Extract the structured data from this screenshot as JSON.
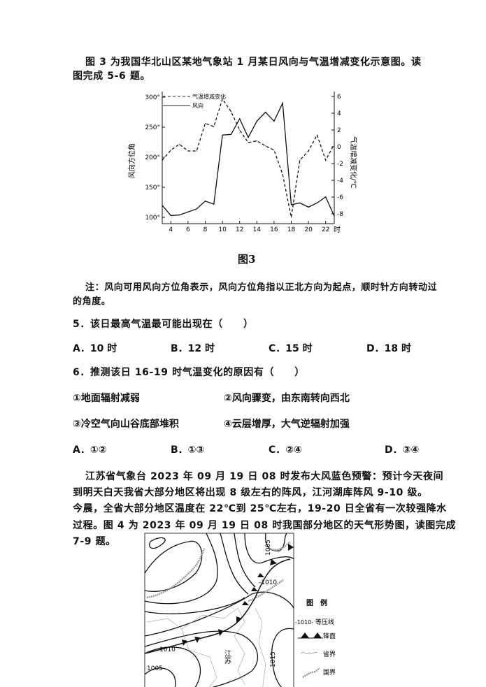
{
  "intro1": {
    "lines": [
      "图 3 为我国华北山区某地气象站 1 月某日风向与气温增减变化示意图。读",
      "图完成 5-6 题。"
    ]
  },
  "chart_data": {
    "type": "line",
    "x": [
      3,
      4,
      5,
      6,
      7,
      8,
      9,
      10,
      11,
      12,
      13,
      14,
      15,
      16,
      17,
      18,
      19,
      20,
      21,
      22,
      23
    ],
    "xticks": [
      "4",
      "6",
      "8",
      "10",
      "12",
      "14",
      "16",
      "18",
      "20",
      "22"
    ],
    "xunit": "时",
    "ylabel_left": "风向方位角",
    "ylabel_right": "气温增减变化/℃",
    "yticks_left": [
      "100°",
      "150°",
      "200°",
      "250°",
      "300°"
    ],
    "yticks_right": [
      "-8",
      "-6",
      "-4",
      "-2",
      "0",
      "2",
      "4",
      "6"
    ],
    "ylim_left": [
      100,
      300
    ],
    "ylim_right": [
      -8,
      6
    ],
    "legend_placement": "top-left",
    "series": [
      {
        "name": "气温增减变化",
        "axis": "right",
        "style": "dashed",
        "values": [
          -1.6,
          -0.4,
          0.3,
          -0.5,
          -0.5,
          2.8,
          2.4,
          5.7,
          4.2,
          2.0,
          0.5,
          0.7,
          0.1,
          -0.4,
          -3.3,
          -8.4,
          -1.6,
          -0.5,
          1.4,
          -1.6,
          0.3
        ]
      },
      {
        "name": "风向",
        "axis": "left",
        "style": "solid",
        "values": [
          120,
          103,
          104,
          109,
          114,
          127,
          122,
          237,
          238,
          264,
          233,
          260,
          275,
          260,
          290,
          121,
          124,
          117,
          124,
          134,
          102
        ]
      }
    ],
    "title": "图3"
  },
  "note": {
    "lines": [
      "注：风向可用风向方位角表示，风向方位角指以正北方向为起点，顺时针方向转动过",
      "的角度。"
    ]
  },
  "q5": {
    "stem": "5．该日最高气温最可能出现在（　　）",
    "options": [
      "A．10 时",
      "B．12 时",
      "C．15 时",
      "D．18 时"
    ]
  },
  "q6": {
    "stem": "6．推测该日 16-19 时气温变化的原因有（　　）",
    "items": [
      "①地面辐射减弱",
      "②风向骤变，由东南转向西北",
      "③冷空气向山谷底部堆积",
      "④云层增厚，大气逆辐射加强"
    ],
    "options": [
      "A．①②",
      "B．①③",
      "C．②④",
      "D．③④"
    ]
  },
  "intro2": {
    "lines": [
      "江苏省气象台 2023 年 09 月 19 日 08 时发布大风蓝色预警：预计今天夜间",
      "到明天白天我省大部分地区将出现 8 级左右的阵风，江河湖库阵风 9-10 级。",
      "今晨，全省大部分地区温度在 22℃到 25℃左右，19-20 日全省有一次较强降水",
      "过程。图 4 为 2023 年 09 月 19 日 08 时我国部分地区的天气形势图，读图完成",
      "7-9 题。"
    ]
  },
  "map": {
    "labels": {
      "isobar_1005_top": "1005",
      "isobar_1010_mid": "-1010",
      "isobar_1010_left": "1010",
      "isobar_1005_left": "1005",
      "isobar_1015": "1015",
      "province": "江苏"
    },
    "legend": {
      "title": "图　例",
      "isobar": "等压线",
      "isobar_sample": "-1010-",
      "front": "锋面",
      "province_border": "省界",
      "national_border": "国界"
    }
  }
}
